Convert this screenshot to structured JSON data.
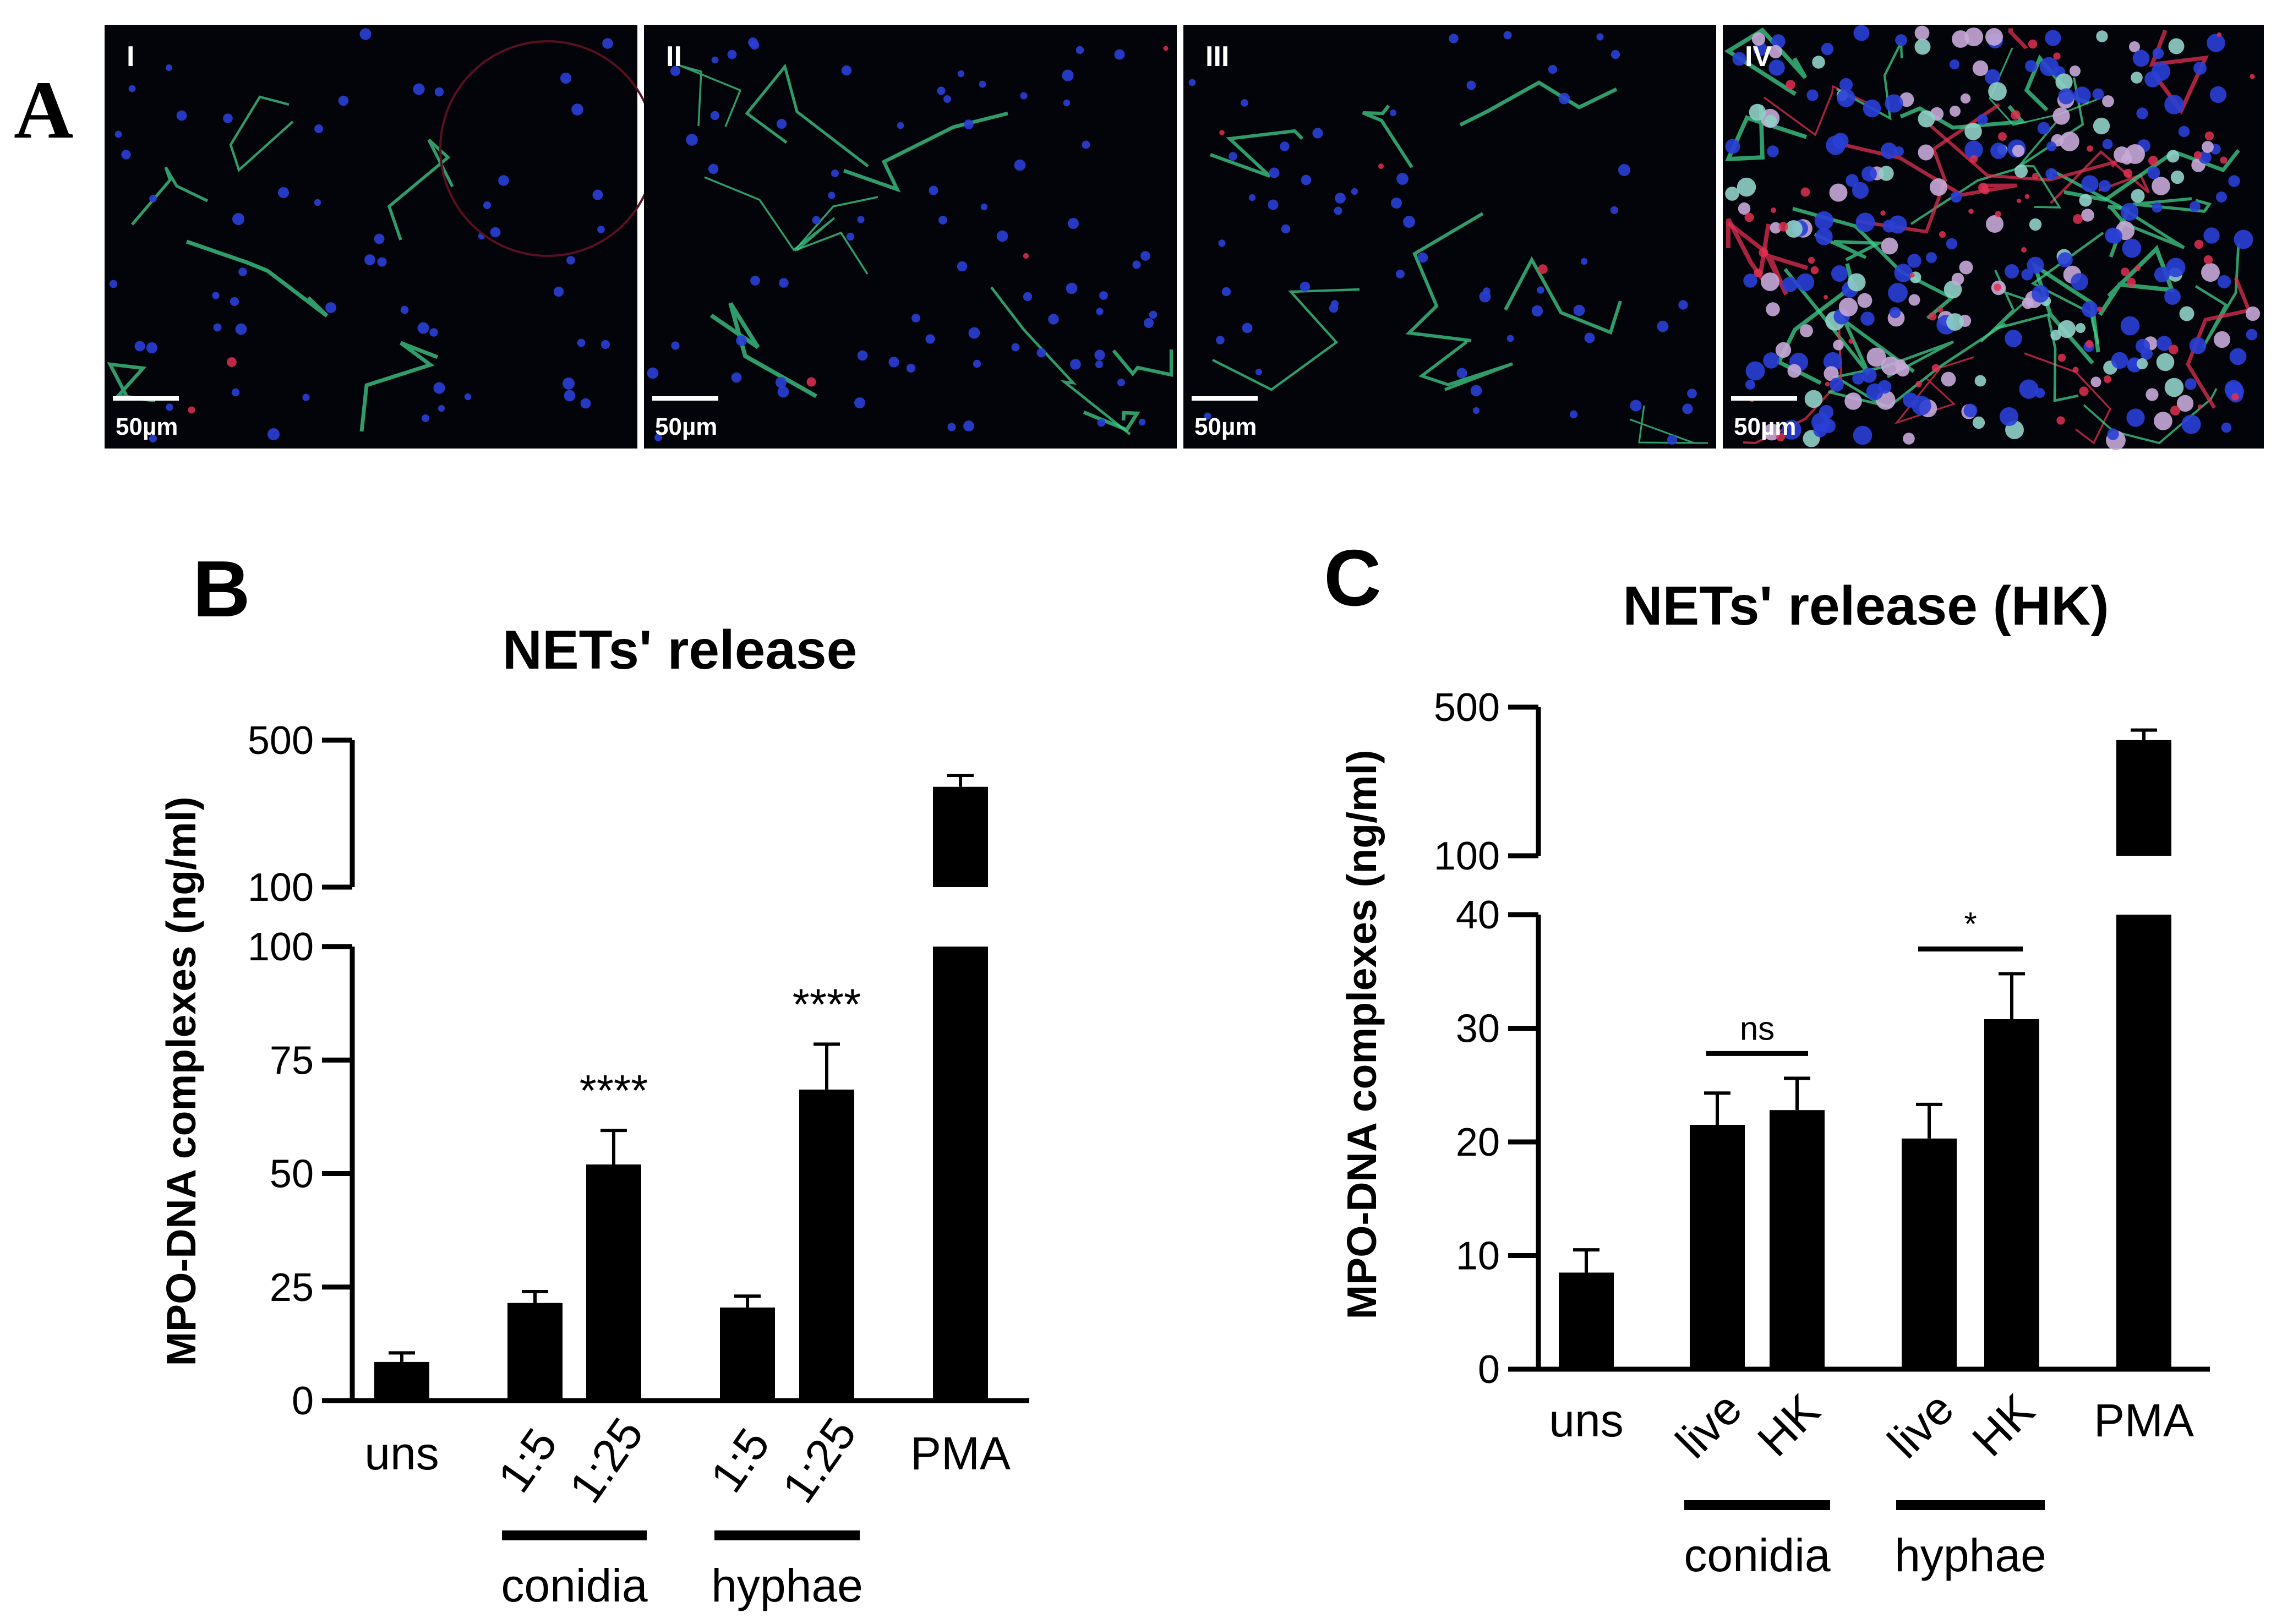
{
  "panel_A": {
    "letter": "A",
    "images": [
      {
        "roman": "I",
        "scale": "50µm"
      },
      {
        "roman": "II",
        "scale": "50µm"
      },
      {
        "roman": "III",
        "scale": "50µm"
      },
      {
        "roman": "IV",
        "scale": "50µm"
      }
    ],
    "colors": {
      "nuclei": "#2a3fd6",
      "mpo": "#3fd08a",
      "elastase": "#e03050",
      "background": "#03030a"
    }
  },
  "chart_data": [
    {
      "panel": "B",
      "type": "bar",
      "title": "NETs' release",
      "ylabel": "MPO-DNA complexes (ng/ml)",
      "y_lower_range": [
        0,
        100
      ],
      "y_lower_ticks": [
        "0",
        "25",
        "50",
        "75",
        "100"
      ],
      "y_upper_range": [
        100,
        500
      ],
      "y_upper_ticks": [
        "100",
        "500"
      ],
      "categories": [
        "uns",
        "1:5",
        "1:25",
        "1:5",
        "1:25",
        "PMA"
      ],
      "values": [
        8.5,
        21.5,
        52,
        20.5,
        68.5,
        300
      ],
      "errors": [
        2,
        2.5,
        7.5,
        2.5,
        10,
        40
      ],
      "groups": [
        {
          "label": "conidia",
          "members": [
            1,
            2
          ]
        },
        {
          "label": "hyphae",
          "members": [
            3,
            4
          ]
        }
      ],
      "annotations": [
        {
          "bar": 2,
          "text": "****"
        },
        {
          "bar": 4,
          "text": "****"
        }
      ],
      "bar_color": "#000000"
    },
    {
      "panel": "C",
      "type": "bar",
      "title": "NETs' release (HK)",
      "ylabel": "MPO-DNA complexes (ng/ml)",
      "y_lower_range": [
        0,
        40
      ],
      "y_lower_ticks": [
        "0",
        "10",
        "20",
        "30",
        "40"
      ],
      "y_upper_range": [
        100,
        500
      ],
      "y_upper_ticks": [
        "100",
        "500"
      ],
      "categories": [
        "uns",
        "live",
        "HK",
        "live",
        "HK",
        "PMA"
      ],
      "values": [
        8.5,
        21.5,
        22.8,
        20.3,
        30.8,
        350
      ],
      "errors": [
        2,
        2.8,
        2.8,
        3,
        4,
        40
      ],
      "groups": [
        {
          "label": "conidia",
          "members": [
            1,
            2
          ]
        },
        {
          "label": "hyphae",
          "members": [
            3,
            4
          ]
        }
      ],
      "comparisons": [
        {
          "bars": [
            1,
            2
          ],
          "text": "ns"
        },
        {
          "bars": [
            3,
            4
          ],
          "text": "*"
        }
      ],
      "bar_color": "#000000"
    }
  ]
}
